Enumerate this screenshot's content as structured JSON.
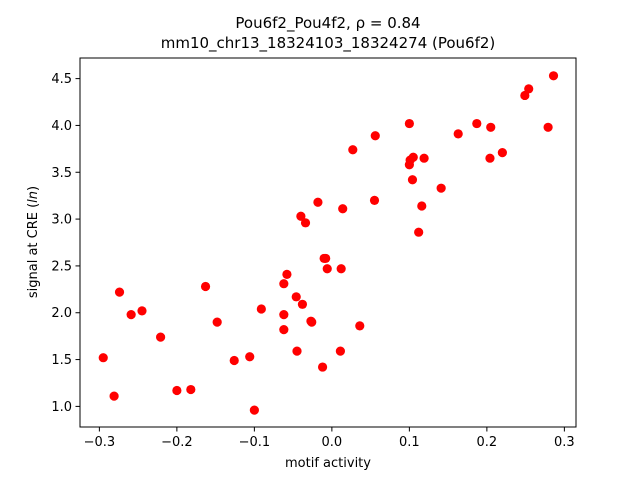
{
  "chart_data": {
    "type": "scatter",
    "title_line1": "Pou6f2_Pou4f2, ρ = 0.84",
    "title_line2": "mm10_chr13_18324103_18324274 (Pou6f2)",
    "xlabel": "motif activity",
    "ylabel": "signal at CRE (ln)",
    "xlim": [
      -0.325,
      0.315
    ],
    "ylim": [
      0.78,
      4.72
    ],
    "xticks": [
      -0.3,
      -0.2,
      -0.1,
      0.0,
      0.1,
      0.2,
      0.3
    ],
    "xtick_labels": [
      "−0.3",
      "−0.2",
      "−0.1",
      "0.0",
      "0.1",
      "0.2",
      "0.3"
    ],
    "yticks": [
      1.0,
      1.5,
      2.0,
      2.5,
      3.0,
      3.5,
      4.0,
      4.5
    ],
    "ytick_labels": [
      "1.0",
      "1.5",
      "2.0",
      "2.5",
      "3.0",
      "3.5",
      "4.0",
      "4.5"
    ],
    "marker_color": "#ff0000",
    "grid": false,
    "points": [
      {
        "x": -0.295,
        "y": 1.52
      },
      {
        "x": -0.281,
        "y": 1.11
      },
      {
        "x": -0.274,
        "y": 2.22
      },
      {
        "x": -0.259,
        "y": 1.98
      },
      {
        "x": -0.245,
        "y": 2.02
      },
      {
        "x": -0.221,
        "y": 1.74
      },
      {
        "x": -0.2,
        "y": 1.17
      },
      {
        "x": -0.182,
        "y": 1.18
      },
      {
        "x": -0.163,
        "y": 2.28
      },
      {
        "x": -0.148,
        "y": 1.9
      },
      {
        "x": -0.126,
        "y": 1.49
      },
      {
        "x": -0.106,
        "y": 1.53
      },
      {
        "x": -0.1,
        "y": 0.96
      },
      {
        "x": -0.091,
        "y": 2.04
      },
      {
        "x": -0.062,
        "y": 2.31
      },
      {
        "x": -0.062,
        "y": 1.98
      },
      {
        "x": -0.062,
        "y": 1.82
      },
      {
        "x": -0.058,
        "y": 2.41
      },
      {
        "x": -0.046,
        "y": 2.17
      },
      {
        "x": -0.045,
        "y": 1.59
      },
      {
        "x": -0.04,
        "y": 3.03
      },
      {
        "x": -0.038,
        "y": 2.09
      },
      {
        "x": -0.034,
        "y": 2.96
      },
      {
        "x": -0.027,
        "y": 1.91
      },
      {
        "x": -0.026,
        "y": 1.9
      },
      {
        "x": -0.018,
        "y": 3.18
      },
      {
        "x": -0.012,
        "y": 1.42
      },
      {
        "x": -0.01,
        "y": 2.58
      },
      {
        "x": -0.008,
        "y": 2.58
      },
      {
        "x": -0.006,
        "y": 2.47
      },
      {
        "x": 0.011,
        "y": 1.59
      },
      {
        "x": 0.012,
        "y": 2.47
      },
      {
        "x": 0.014,
        "y": 3.11
      },
      {
        "x": 0.027,
        "y": 3.74
      },
      {
        "x": 0.036,
        "y": 1.86
      },
      {
        "x": 0.055,
        "y": 3.2
      },
      {
        "x": 0.056,
        "y": 3.89
      },
      {
        "x": 0.1,
        "y": 4.02
      },
      {
        "x": 0.1,
        "y": 3.58
      },
      {
        "x": 0.101,
        "y": 3.63
      },
      {
        "x": 0.104,
        "y": 3.42
      },
      {
        "x": 0.105,
        "y": 3.66
      },
      {
        "x": 0.112,
        "y": 2.86
      },
      {
        "x": 0.116,
        "y": 3.14
      },
      {
        "x": 0.119,
        "y": 3.65
      },
      {
        "x": 0.141,
        "y": 3.33
      },
      {
        "x": 0.163,
        "y": 3.91
      },
      {
        "x": 0.187,
        "y": 4.02
      },
      {
        "x": 0.204,
        "y": 3.65
      },
      {
        "x": 0.205,
        "y": 3.98
      },
      {
        "x": 0.22,
        "y": 3.71
      },
      {
        "x": 0.249,
        "y": 4.32
      },
      {
        "x": 0.254,
        "y": 4.39
      },
      {
        "x": 0.279,
        "y": 3.98
      },
      {
        "x": 0.286,
        "y": 4.53
      }
    ]
  }
}
